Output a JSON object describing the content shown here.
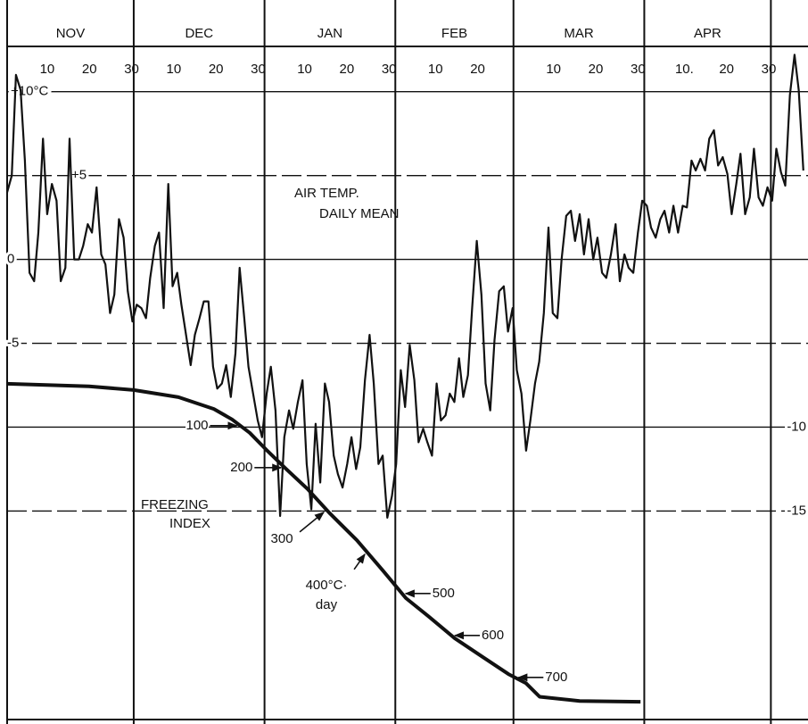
{
  "chart_data": {
    "type": "line",
    "annotations": [
      "AIR TEMP.",
      "DAILY MEAN",
      "FREEZING",
      "INDEX"
    ],
    "xlim": [
      0.5,
      190.3
    ],
    "ylim": [
      -27.7,
      12.7
    ],
    "y2lim": [
      811,
      -804
    ],
    "months": [
      {
        "value": 15.5,
        "label": "NOV"
      },
      {
        "value": 46,
        "label": "DEC"
      },
      {
        "value": 77,
        "label": "JAN"
      },
      {
        "value": 106.5,
        "label": "FEB"
      },
      {
        "value": 136,
        "label": "MAR"
      },
      {
        "value": 166.5,
        "label": "APR"
      }
    ],
    "month_boundaries": [
      30.5,
      61.5,
      92.5,
      120.5,
      151.5,
      181.5
    ],
    "xticks": [
      {
        "value": 10,
        "label": "10"
      },
      {
        "value": 20,
        "label": "20"
      },
      {
        "value": 30,
        "label": "30"
      },
      {
        "value": 40,
        "label": "10"
      },
      {
        "value": 50,
        "label": "20"
      },
      {
        "value": 60,
        "label": "30"
      },
      {
        "value": 71,
        "label": "10"
      },
      {
        "value": 81,
        "label": "20"
      },
      {
        "value": 91,
        "label": "30"
      },
      {
        "value": 102,
        "label": "10"
      },
      {
        "value": 112,
        "label": "20"
      },
      {
        "value": 130,
        "label": "10"
      },
      {
        "value": 140,
        "label": "20"
      },
      {
        "value": 150,
        "label": "30"
      },
      {
        "value": 161,
        "label": "10."
      },
      {
        "value": 171,
        "label": "20"
      },
      {
        "value": 181,
        "label": "30"
      }
    ],
    "yticks": [
      {
        "value": 10,
        "label": "+10°C"
      },
      {
        "value": 5,
        "label": "+5"
      },
      0,
      -5,
      -10,
      -15
    ],
    "grid": true,
    "series": [
      {
        "color": "#111111",
        "x": [
          0.5,
          1.6,
          2.6,
          3.7,
          4.7,
          5.8,
          6.9,
          7.9,
          9.0,
          10.0,
          11.1,
          12.2,
          13.2,
          14.3,
          15.3,
          16.4,
          17.5,
          18.5,
          19.6,
          20.6,
          21.7,
          22.8,
          23.8,
          24.9,
          25.9,
          27.0,
          28.1,
          29.1,
          30.2,
          31.2,
          32.3,
          33.4,
          34.4,
          35.5,
          36.5,
          37.6,
          38.7,
          39.7,
          40.8,
          41.8,
          42.9,
          44.0,
          45.0,
          46.1,
          47.1,
          48.2,
          49.3,
          50.3,
          51.4,
          52.4,
          53.5,
          54.6,
          55.6,
          56.7,
          57.7,
          58.8,
          59.9,
          60.9,
          62.0,
          63.0,
          64.1,
          65.2,
          66.2,
          67.3,
          68.3,
          69.4,
          70.5,
          71.5,
          72.6,
          73.6,
          74.7,
          75.8,
          76.8,
          77.9,
          78.9,
          80.0,
          81.1,
          82.1,
          83.2,
          84.2,
          85.3,
          86.4,
          87.4,
          88.5,
          89.5,
          90.6,
          91.7,
          92.7,
          93.8,
          94.8,
          95.9,
          97.0,
          98.0,
          99.1,
          100.1,
          101.2,
          102.3,
          103.3,
          104.4,
          105.4,
          106.5,
          107.6,
          108.6,
          109.7,
          110.7,
          111.8,
          112.9,
          113.9,
          115.0,
          116.0,
          117.1,
          118.2,
          119.2,
          120.3,
          121.3,
          122.4,
          123.5,
          124.5,
          125.6,
          126.6,
          127.7,
          128.8,
          129.8,
          130.9,
          131.9,
          133.0,
          134.1,
          135.1,
          136.2,
          137.2,
          138.3,
          139.4,
          140.4,
          141.5,
          142.5,
          143.6,
          144.7,
          145.7,
          146.8,
          147.8,
          148.9,
          150.0,
          151.0,
          152.1,
          153.1,
          154.2,
          155.3,
          156.3,
          157.4,
          158.4,
          159.5,
          160.6,
          161.6,
          162.7,
          163.7,
          164.8,
          165.9,
          166.9,
          168.0,
          169.0,
          170.1,
          171.2,
          172.2,
          173.3,
          174.3,
          175.4,
          176.5,
          177.5,
          178.6,
          179.6,
          180.7,
          181.8,
          182.8,
          183.9,
          184.9,
          186.0,
          187.1,
          188.1,
          189.2
        ],
        "values": [
          4.0,
          5.0,
          11,
          10.1,
          5.9,
          -0.8,
          -1.3,
          1.6,
          7.2,
          2.7,
          4.5,
          3.5,
          -1.3,
          -0.5,
          7.2,
          0,
          0,
          0.8,
          2.1,
          1.6,
          4.3,
          0.3,
          -0.3,
          -3.2,
          -2.1,
          2.4,
          1.3,
          -1.9,
          -3.7,
          -2.7,
          -2.9,
          -3.5,
          -1.1,
          0.8,
          1.6,
          -2.9,
          4.5,
          -1.6,
          -0.8,
          -2.7,
          -4.5,
          -6.3,
          -4.5,
          -3.5,
          -2.5,
          -2.5,
          -6.4,
          -7.7,
          -7.4,
          -6.3,
          -8.2,
          -5.6,
          -0.5,
          -3.5,
          -6.4,
          -8.0,
          -9.6,
          -10.6,
          -8.0,
          -6.4,
          -9.0,
          -15.3,
          -10.6,
          -9.0,
          -10.1,
          -8.5,
          -7.2,
          -12.2,
          -14.9,
          -9.8,
          -13.3,
          -7.4,
          -8.5,
          -11.7,
          -12.8,
          -13.6,
          -12.2,
          -10.6,
          -12.5,
          -11.2,
          -7.2,
          -4.5,
          -7.4,
          -12.2,
          -11.7,
          -15.4,
          -14.1,
          -12.2,
          -6.6,
          -8.8,
          -5.1,
          -7.2,
          -10.9,
          -10.1,
          -10.9,
          -11.7,
          -7.4,
          -9.6,
          -9.3,
          -8.0,
          -8.5,
          -5.9,
          -8.2,
          -6.9,
          -2.9,
          1.1,
          -2.1,
          -7.4,
          -9.0,
          -4.8,
          -1.9,
          -1.6,
          -4.3,
          -2.9,
          -6.6,
          -8.0,
          -11.4,
          -9.6,
          -7.4,
          -6.1,
          -3.2,
          1.9,
          -3.2,
          -3.5,
          0,
          2.6,
          2.9,
          1.1,
          2.7,
          0.3,
          2.4,
          0,
          1.3,
          -0.8,
          -1.1,
          0.3,
          2.1,
          -1.3,
          0.3,
          -0.5,
          -0.8,
          1.6,
          3.5,
          3.2,
          1.9,
          1.3,
          2.4,
          2.9,
          1.6,
          3.2,
          1.6,
          3.2,
          3.1,
          5.9,
          5.3,
          6.0,
          5.3,
          7.2,
          7.7,
          5.6,
          6.1,
          5.1,
          2.7,
          4.5,
          6.3,
          2.7,
          3.7,
          6.6,
          3.7,
          3.2,
          4.3,
          3.5,
          6.6,
          5.2,
          4.4,
          9.8,
          12.2,
          10.1,
          5.3
        ]
      },
      {
        "color": "#111111",
        "axis": "y2",
        "x": [
          0.5,
          19.9,
          30.5,
          41.1,
          49.5,
          53.8,
          58.0,
          62.2,
          66.5,
          71.7,
          77.0,
          83.4,
          89.7,
          95.0,
          100.3,
          106.6,
          113.0,
          119.3,
          123.5,
          126.7,
          136.2,
          150.6
        ],
        "values": [
          0,
          6,
          15,
          32,
          60,
          85,
          117,
          160,
          202,
          251,
          309,
          373,
          447,
          511,
          554,
          607,
          650,
          692,
          714,
          746,
          756,
          758
        ],
        "index_labels": [
          {
            "value": 100,
            "label": "100"
          },
          {
            "value": 200,
            "label": "200"
          },
          {
            "value": 300,
            "label": "300"
          },
          {
            "value": 400,
            "label": "400°C·\nday"
          },
          {
            "value": 500,
            "label": "500"
          },
          {
            "value": 600,
            "label": "600"
          },
          {
            "value": 700,
            "label": "700"
          }
        ]
      }
    ]
  }
}
